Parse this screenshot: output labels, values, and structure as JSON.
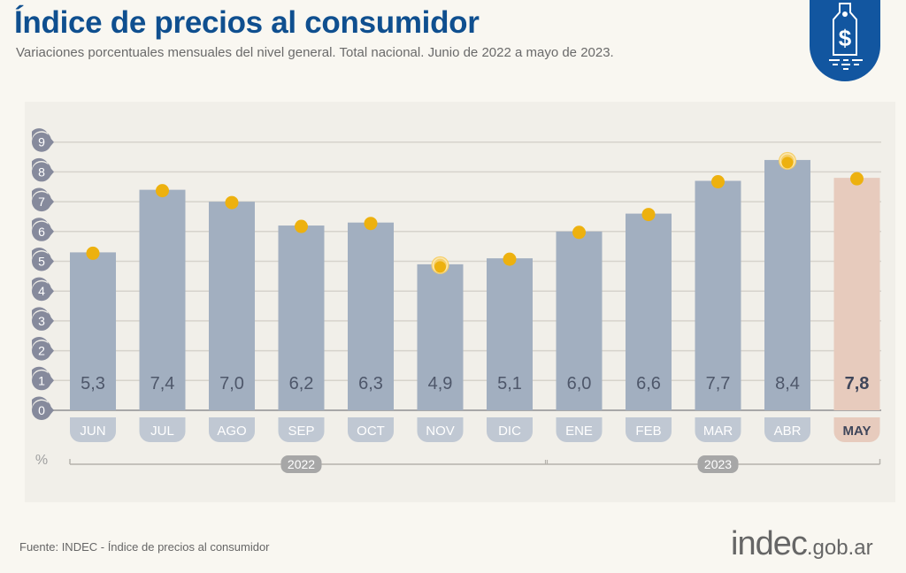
{
  "header": {
    "title": "Índice de precios al consumidor",
    "subtitle": "Variaciones porcentuales mensuales del nivel general. Total nacional. Junio de 2022 a mayo de 2023.",
    "badge_icon": "price-tag-dollar-icon"
  },
  "footer": {
    "source": "Fuente: INDEC - Índice de precios al consumidor",
    "logo_main": "indec",
    "logo_domain": ".gob.ar"
  },
  "colors": {
    "title": "#0f4f8f",
    "bar": "#a2afc0",
    "bar_highlight": "#e7cbbd",
    "marker": "#edb10f",
    "axis_badge": "#868a9c",
    "grid": "#d6d3cc",
    "value_label": "#4e576a",
    "highlight_label": "#3f465a",
    "year_badge": "#a7a7a7"
  },
  "chart_data": {
    "type": "bar",
    "title": "Índice de precios al consumidor",
    "subtitle": "Variaciones porcentuales mensuales del nivel general. Total nacional. Junio de 2022 a mayo de 2023.",
    "xlabel": "",
    "ylabel": "%",
    "ylim": [
      0,
      9
    ],
    "yticks": [
      "0",
      "1",
      "2",
      "3",
      "4",
      "5",
      "6",
      "7",
      "8",
      "9"
    ],
    "grid": true,
    "categories": [
      "JUN",
      "JUL",
      "AGO",
      "SEP",
      "OCT",
      "NOV",
      "DIC",
      "ENE",
      "FEB",
      "MAR",
      "ABR",
      "MAY"
    ],
    "values": [
      5.3,
      7.4,
      7.0,
      6.2,
      6.3,
      4.9,
      5.1,
      6.0,
      6.6,
      7.7,
      8.4,
      7.8
    ],
    "value_labels": [
      "5,3",
      "7,4",
      "7,0",
      "6,2",
      "6,3",
      "4,9",
      "5,1",
      "6,0",
      "6,6",
      "7,7",
      "8,4",
      "7,8"
    ],
    "highlighted": [
      "MAY"
    ],
    "ringed_markers": [
      "NOV",
      "ABR"
    ],
    "year_groups": [
      {
        "label": "2022",
        "from": "JUN",
        "to": "DIC"
      },
      {
        "label": "2023",
        "from": "ENE",
        "to": "MAY"
      }
    ]
  }
}
